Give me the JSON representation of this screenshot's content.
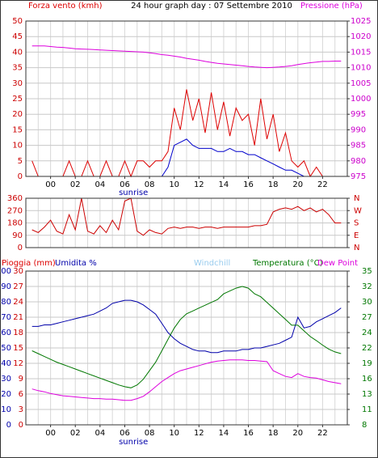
{
  "chart_data": [
    {
      "type": "line",
      "title": "24 hour graph day : 07 Settembre 2010",
      "x": [
        -1.5,
        -1,
        -0.5,
        0,
        0.5,
        1,
        1.5,
        2,
        2.5,
        3,
        3.5,
        4,
        4.5,
        5,
        5.5,
        6,
        6.5,
        7,
        7.5,
        8,
        8.5,
        9,
        9.5,
        10,
        10.5,
        11,
        11.5,
        12,
        12.5,
        13,
        13.5,
        14,
        14.5,
        15,
        15.5,
        16,
        16.5,
        17,
        17.5,
        18,
        18.5,
        19,
        19.5,
        20,
        20.5,
        21,
        21.5,
        22,
        22.5,
        23,
        23.5
      ],
      "xlim": [
        -2,
        24
      ],
      "xticks": [
        {
          "value": 0,
          "label": "00"
        },
        {
          "value": 2,
          "label": "02"
        },
        {
          "value": 4,
          "label": "04"
        },
        {
          "value": 6,
          "label": "06"
        },
        {
          "value": 8,
          "label": "08"
        },
        {
          "value": 10,
          "label": "10"
        },
        {
          "value": 12,
          "label": "12"
        },
        {
          "value": 14,
          "label": "14"
        },
        {
          "value": 16,
          "label": "16"
        },
        {
          "value": 18,
          "label": "18"
        },
        {
          "value": 20,
          "label": "20"
        },
        {
          "value": 22,
          "label": "22"
        }
      ],
      "ylim": [
        0,
        50
      ],
      "yticks": [
        0,
        5,
        10,
        15,
        20,
        25,
        30,
        35,
        40,
        45,
        50
      ],
      "ytick_color": "#cc0000",
      "y2lim": [
        975,
        1025
      ],
      "y2ticks": [
        975,
        980,
        985,
        990,
        995,
        1000,
        1005,
        1010,
        1015,
        1020,
        1025
      ],
      "y2tick_color": "#cc00cc",
      "grid": true,
      "annotations": [
        {
          "text": "sunrise",
          "x": 6.7
        }
      ],
      "series": [
        {
          "name": "Forza vento (kmh)",
          "color": "#dd0000",
          "values": [
            5,
            0,
            0,
            0,
            0,
            0,
            5,
            0,
            0,
            5,
            0,
            0,
            5,
            0,
            0,
            5,
            0,
            5,
            5,
            3,
            5,
            5,
            8,
            22,
            15,
            28,
            18,
            25,
            14,
            27,
            15,
            24,
            13,
            22,
            18,
            20,
            10,
            25,
            12,
            20,
            8,
            14,
            5,
            3,
            5,
            0,
            3,
            0,
            0,
            0,
            0
          ]
        },
        {
          "color": "#0000cc",
          "values": [
            0,
            0,
            0,
            0,
            0,
            0,
            0,
            0,
            0,
            0,
            0,
            0,
            0,
            0,
            0,
            0,
            0,
            0,
            0,
            0,
            0,
            0,
            3,
            10,
            11,
            12,
            10,
            9,
            9,
            9,
            8,
            8,
            9,
            8,
            8,
            7,
            7,
            6,
            5,
            4,
            3,
            2,
            2,
            1,
            0,
            0,
            0,
            0,
            0,
            0,
            0
          ]
        },
        {
          "name": "Pressione (hPa)",
          "color": "#dd00dd",
          "axis": "y2",
          "values": [
            1017,
            1017,
            1017,
            1016.8,
            1016.6,
            1016.5,
            1016.3,
            1016.1,
            1016,
            1015.9,
            1015.8,
            1015.7,
            1015.6,
            1015.5,
            1015.4,
            1015.3,
            1015.2,
            1015.1,
            1015,
            1014.8,
            1014.5,
            1014.2,
            1014,
            1013.7,
            1013.4,
            1013,
            1012.7,
            1012.4,
            1012,
            1011.7,
            1011.4,
            1011.2,
            1011,
            1010.8,
            1010.6,
            1010.4,
            1010.2,
            1010.1,
            1010,
            1010.1,
            1010.2,
            1010.4,
            1010.6,
            1011,
            1011.3,
            1011.6,
            1011.8,
            1012,
            1012,
            1012.1,
            1012.1
          ]
        }
      ]
    },
    {
      "type": "line",
      "x": [
        -1.5,
        -1,
        -0.5,
        0,
        0.5,
        1,
        1.5,
        2,
        2.5,
        3,
        3.5,
        4,
        4.5,
        5,
        5.5,
        6,
        6.5,
        7,
        7.5,
        8,
        8.5,
        9,
        9.5,
        10,
        10.5,
        11,
        11.5,
        12,
        12.5,
        13,
        13.5,
        14,
        14.5,
        15,
        15.5,
        16,
        16.5,
        17,
        17.5,
        18,
        18.5,
        19,
        19.5,
        20,
        20.5,
        21,
        21.5,
        22,
        22.5,
        23,
        23.5
      ],
      "xlim": [
        -2,
        24
      ],
      "ylim": [
        0,
        360
      ],
      "yticks": [
        0,
        90,
        180,
        270,
        360
      ],
      "ytick_color": "#cc0000",
      "y2lim": [
        0,
        360
      ],
      "y2ticks": [
        {
          "value": 0,
          "label": "N"
        },
        {
          "value": 90,
          "label": "E"
        },
        {
          "value": 180,
          "label": "S"
        },
        {
          "value": 270,
          "label": "W"
        },
        {
          "value": 360,
          "label": "N"
        }
      ],
      "y2tick_color": "#cc0000",
      "grid": true,
      "series": [
        {
          "color": "#cc0000",
          "values": [
            130,
            110,
            150,
            200,
            120,
            100,
            240,
            130,
            360,
            120,
            100,
            160,
            110,
            200,
            130,
            340,
            360,
            120,
            90,
            130,
            110,
            100,
            140,
            150,
            140,
            150,
            150,
            140,
            150,
            150,
            140,
            150,
            150,
            150,
            150,
            150,
            160,
            160,
            170,
            260,
            280,
            290,
            280,
            300,
            270,
            290,
            260,
            280,
            240,
            180,
            180
          ]
        }
      ]
    },
    {
      "type": "line",
      "x": [
        -1.5,
        -1,
        -0.5,
        0,
        0.5,
        1,
        1.5,
        2,
        2.5,
        3,
        3.5,
        4,
        4.5,
        5,
        5.5,
        6,
        6.5,
        7,
        7.5,
        8,
        8.5,
        9,
        9.5,
        10,
        10.5,
        11,
        11.5,
        12,
        12.5,
        13,
        13.5,
        14,
        14.5,
        15,
        15.5,
        16,
        16.5,
        17,
        17.5,
        18,
        18.5,
        19,
        19.5,
        20,
        20.5,
        21,
        21.5,
        22,
        22.5,
        23,
        23.5
      ],
      "xlim": [
        -2,
        24
      ],
      "xticks": [
        {
          "value": 0,
          "label": "00"
        },
        {
          "value": 2,
          "label": "02"
        },
        {
          "value": 4,
          "label": "04"
        },
        {
          "value": 6,
          "label": "06"
        },
        {
          "value": 8,
          "label": "08"
        },
        {
          "value": 10,
          "label": "10"
        },
        {
          "value": 12,
          "label": "12"
        },
        {
          "value": 14,
          "label": "14"
        },
        {
          "value": 16,
          "label": "16"
        },
        {
          "value": 18,
          "label": "18"
        },
        {
          "value": 20,
          "label": "20"
        },
        {
          "value": 22,
          "label": "22"
        }
      ],
      "ylim": [
        0,
        100
      ],
      "yticks": [
        0,
        10,
        20,
        30,
        40,
        50,
        60,
        70,
        80,
        90,
        100
      ],
      "ytick_color": "#0000aa",
      "y3lim": [
        0,
        30
      ],
      "y3ticks": [
        0,
        3,
        6,
        9,
        12,
        15,
        18,
        21,
        24,
        27,
        30
      ],
      "y3tick_color": "#cc0000",
      "y2lim": [
        8,
        35
      ],
      "y2ticks": [
        {
          "value": 8,
          "label": "8"
        },
        {
          "value": 10.7,
          "label": "11"
        },
        {
          "value": 13.4,
          "label": "13"
        },
        {
          "value": 16.1,
          "label": "16"
        },
        {
          "value": 18.8,
          "label": "19"
        },
        {
          "value": 21.5,
          "label": "22"
        },
        {
          "value": 24.2,
          "label": "24"
        },
        {
          "value": 26.9,
          "label": "27"
        },
        {
          "value": 29.6,
          "label": "30"
        },
        {
          "value": 32.3,
          "label": "32"
        },
        {
          "value": 35,
          "label": "35"
        }
      ],
      "y2tick_color": "#007700",
      "grid": true,
      "windchill_label": "Windchill",
      "annotations": [
        {
          "text": "sunrise",
          "x": 6.7
        }
      ],
      "series": [
        {
          "name": "Pioggia (mm)",
          "color": "#dd0000",
          "axis": "y3",
          "values": [
            0,
            0,
            0,
            0,
            0,
            0,
            0,
            0,
            0,
            0,
            0,
            0,
            0,
            0,
            0,
            0,
            0,
            0,
            0,
            0,
            0,
            0,
            0,
            0,
            0,
            0,
            0,
            0,
            0,
            0,
            0,
            0,
            0,
            0,
            0,
            0,
            0,
            0,
            0,
            0,
            0,
            0,
            0,
            0,
            0,
            0,
            0,
            0,
            0,
            0,
            0
          ]
        },
        {
          "name": "Umidita %",
          "color": "#0000aa",
          "values": [
            64,
            64,
            65,
            65,
            66,
            67,
            68,
            69,
            70,
            71,
            72,
            74,
            76,
            79,
            80,
            81,
            81,
            80,
            78,
            75,
            72,
            66,
            60,
            56,
            53,
            51,
            49,
            48,
            48,
            47,
            47,
            48,
            48,
            48,
            49,
            49,
            50,
            50,
            51,
            52,
            53,
            55,
            57,
            70,
            63,
            64,
            67,
            69,
            71,
            73,
            76
          ]
        },
        {
          "name": "Temperatura (°C)",
          "color": "#007700",
          "axis": "y2",
          "values": [
            21,
            20.5,
            20,
            19.5,
            19,
            18.6,
            18.2,
            17.8,
            17.4,
            17,
            16.6,
            16.2,
            15.8,
            15.4,
            15,
            14.7,
            14.5,
            15,
            16,
            17.5,
            19,
            21,
            23,
            25,
            26.5,
            27.5,
            28,
            28.5,
            29,
            29.5,
            30,
            31,
            31.5,
            32,
            32.3,
            32,
            31,
            30.5,
            29.5,
            28.5,
            27.5,
            26.5,
            25.5,
            25.5,
            24.5,
            23.5,
            22.8,
            22,
            21.3,
            20.8,
            20.5
          ]
        },
        {
          "name": "Dew Point",
          "color": "#dd00dd",
          "axis": "y2",
          "values": [
            14.3,
            14,
            13.8,
            13.5,
            13.3,
            13.1,
            13,
            12.9,
            12.8,
            12.7,
            12.6,
            12.6,
            12.5,
            12.5,
            12.4,
            12.3,
            12.3,
            12.6,
            13,
            13.8,
            14.7,
            15.6,
            16.3,
            17,
            17.5,
            17.8,
            18.1,
            18.4,
            18.7,
            19,
            19.2,
            19.3,
            19.4,
            19.4,
            19.4,
            19.3,
            19.3,
            19.2,
            19.1,
            17.5,
            17,
            16.5,
            16.3,
            17,
            16.5,
            16.3,
            16.2,
            15.9,
            15.6,
            15.4,
            15.2
          ]
        }
      ]
    }
  ]
}
